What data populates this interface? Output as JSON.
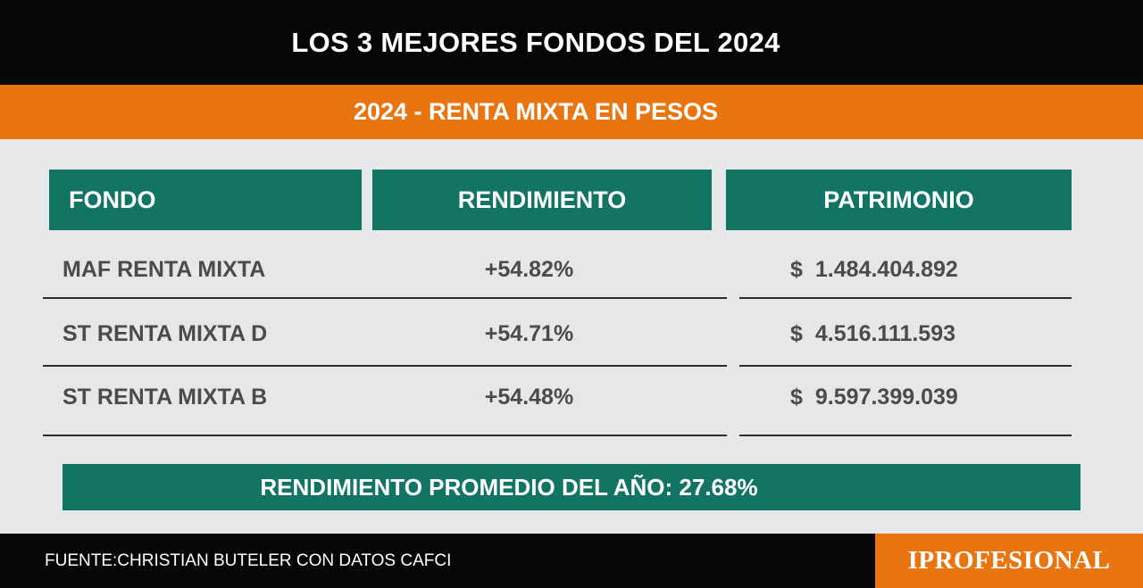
{
  "header": {
    "title": "LOS 3 MEJORES FONDOS DEL 2024",
    "subtitle": "2024 - RENTA MIXTA EN PESOS"
  },
  "table": {
    "columns": [
      "FONDO",
      "RENDIMIENTO",
      "PATRIMONIO"
    ],
    "currency_symbol": "$",
    "rows": [
      {
        "fondo": "MAF RENTA MIXTA",
        "rendimiento": "+54.82%",
        "patrimonio": "1.484.404.892"
      },
      {
        "fondo": "ST RENTA MIXTA D",
        "rendimiento": "+54.71%",
        "patrimonio": "4.516.111.593"
      },
      {
        "fondo": "ST RENTA MIXTA B",
        "rendimiento": "+54.48%",
        "patrimonio": "9.597.399.039"
      }
    ]
  },
  "summary": {
    "text": "RENDIMIENTO PROMEDIO DEL AÑO: 27.68%"
  },
  "footer": {
    "source": "FUENTE:CHRISTIAN BUTELER CON DATOS CAFCI",
    "brand": "IPROFESIONAL"
  },
  "colors": {
    "black": "#060606",
    "orange": "#e8750f",
    "green": "#127563",
    "background": "#e6e7e9",
    "text_gray": "#4b4b4d"
  }
}
